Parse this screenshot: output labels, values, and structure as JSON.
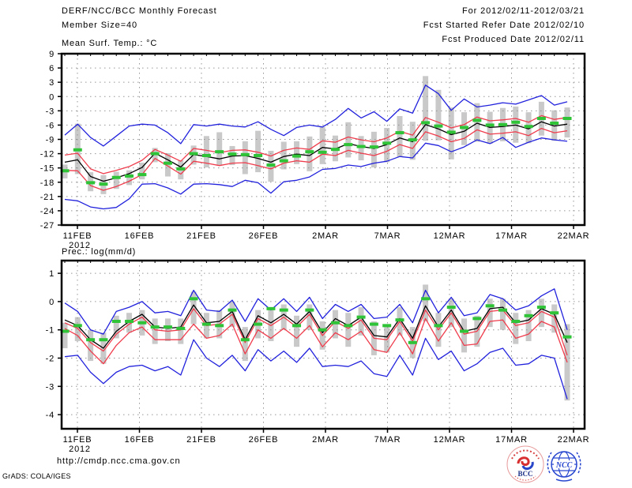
{
  "header": {
    "left": [
      "DERF/NCC/BCC Monthly Forecast",
      "Member Size=40"
    ],
    "right": [
      "For 2012/02/11-2012/03/21",
      "Fcst Started Refer Date 2012/02/10",
      "Fcst Produced Date 2012/02/11"
    ]
  },
  "footer": {
    "url": "http://cmdp.ncc.cma.gov.cn",
    "credit": "GrADS: COLA/IGES",
    "logo_bcc_label": "BCC",
    "logo_ncc_label": "NCC"
  },
  "colors": {
    "envelope_blue": "#2222dd",
    "std_red": "#ef3c4c",
    "mean_black": "#000000",
    "obs_green": "#2fc437",
    "spread_gray": "#c9c9c9",
    "grid_gray": "#969696",
    "axis_black": "#000000"
  },
  "chart_data": [
    {
      "type": "line",
      "title": "Mean Surf. Temp.: °C",
      "x_ticks": [
        {
          "label": "11FEB",
          "sub": "2012"
        },
        {
          "label": "16FEB"
        },
        {
          "label": "21FEB"
        },
        {
          "label": "26FEB"
        },
        {
          "label": "2MAR"
        },
        {
          "label": "7MAR"
        },
        {
          "label": "12MAR"
        },
        {
          "label": "17MAR"
        },
        {
          "label": "22MAR"
        }
      ],
      "y_ticks": [
        9,
        6,
        3,
        0,
        -3,
        -6,
        -9,
        -12,
        -15,
        -18,
        -21,
        -24,
        -27
      ],
      "ylim": [
        -27,
        9
      ],
      "grid": true,
      "series": [
        {
          "name": "ensemble-max",
          "color": "envelope_blue",
          "values": [
            -8.1,
            -5.8,
            -8.6,
            -10.4,
            -8.3,
            -6.2,
            -5.8,
            -6.0,
            -7.6,
            -9.9,
            -5.9,
            -6.2,
            -5.8,
            -6.2,
            -6.4,
            -5.3,
            -6.9,
            -8.2,
            -6.5,
            -6.0,
            -6.4,
            -4.8,
            -2.5,
            -4.5,
            -3.2,
            -5.2,
            -2.6,
            -3.5,
            2.4,
            0.6,
            -2.9,
            -0.5,
            -2.2,
            -1.8,
            -1.3,
            -1.6,
            -0.7,
            0.2,
            -1.8,
            -1.1
          ]
        },
        {
          "name": "mean-plus-spread",
          "color": "std_red",
          "values": [
            -12.3,
            -11.9,
            -15.2,
            -16.2,
            -15.5,
            -14.7,
            -13.4,
            -11.1,
            -12.3,
            -13.6,
            -10.9,
            -11.3,
            -11.8,
            -11.3,
            -11.2,
            -11.7,
            -12.5,
            -11.3,
            -10.8,
            -11.1,
            -9.3,
            -9.6,
            -8.5,
            -9.1,
            -9.5,
            -8.7,
            -7.3,
            -8.1,
            -4.4,
            -5.4,
            -6.6,
            -5.9,
            -4.3,
            -5.1,
            -4.9,
            -4.6,
            -5.4,
            -4.0,
            -4.8,
            -4.4
          ]
        },
        {
          "name": "ensemble-mean",
          "color": "mean_black",
          "values": [
            -13.8,
            -13.3,
            -16.8,
            -17.8,
            -17.1,
            -16.2,
            -14.9,
            -11.9,
            -13.3,
            -14.8,
            -12.2,
            -12.6,
            -13.1,
            -12.5,
            -12.4,
            -13.0,
            -13.8,
            -12.6,
            -12.1,
            -12.4,
            -10.7,
            -11.0,
            -9.9,
            -10.5,
            -10.9,
            -10.1,
            -8.7,
            -9.5,
            -5.9,
            -6.8,
            -8.0,
            -7.3,
            -5.6,
            -6.5,
            -6.3,
            -6.0,
            -6.8,
            -5.3,
            -6.2,
            -5.8
          ]
        },
        {
          "name": "mean-minus-spread",
          "color": "std_red",
          "values": [
            -15.5,
            -15.6,
            -18.7,
            -19.7,
            -18.9,
            -17.8,
            -16.4,
            -13.0,
            -14.6,
            -16.3,
            -13.6,
            -14.0,
            -14.5,
            -14.0,
            -13.9,
            -14.5,
            -15.2,
            -14.0,
            -13.5,
            -13.8,
            -12.1,
            -12.4,
            -11.3,
            -11.9,
            -12.4,
            -11.5,
            -10.1,
            -10.9,
            -7.4,
            -8.3,
            -9.5,
            -8.8,
            -7.0,
            -7.9,
            -7.7,
            -7.4,
            -8.2,
            -6.7,
            -7.6,
            -7.2
          ]
        },
        {
          "name": "ensemble-min",
          "color": "envelope_blue",
          "values": [
            -21.6,
            -21.9,
            -23.2,
            -23.6,
            -23.3,
            -21.5,
            -18.4,
            -18.3,
            -19.2,
            -20.5,
            -18.4,
            -18.3,
            -18.5,
            -18.9,
            -17.6,
            -18.1,
            -20.3,
            -17.9,
            -17.6,
            -16.9,
            -15.3,
            -15.1,
            -14.4,
            -14.7,
            -14.0,
            -13.6,
            -12.6,
            -12.9,
            -9.8,
            -10.3,
            -11.6,
            -10.6,
            -9.1,
            -9.9,
            -8.6,
            -10.7,
            -9.6,
            -8.7,
            -9.1,
            -9.4
          ]
        }
      ],
      "obs_dashes": {
        "name": "green-dash-marker",
        "color": "obs_green",
        "values": [
          -15.6,
          -11.2,
          -18.1,
          -18.4,
          -17.0,
          -16.7,
          -16.4,
          -12.0,
          -14.0,
          -15.2,
          -12.0,
          -12.4,
          -11.6,
          -12.1,
          -12.2,
          -12.4,
          -14.4,
          -13.5,
          -12.5,
          -11.6,
          -11.7,
          -11.1,
          -10.1,
          -10.5,
          -10.6,
          -9.8,
          -7.6,
          -9.1,
          -5.5,
          -6.2,
          -7.5,
          -6.5,
          -5.0,
          -6.0,
          -5.9,
          -5.4,
          -6.3,
          -4.6,
          -5.6,
          -4.6
        ]
      },
      "spread_bars": {
        "name": "gray-spread-bar",
        "color": "spread_gray",
        "hi": [
          -14.3,
          -5.7,
          -15.9,
          -16.5,
          -15.8,
          -15.5,
          -13.9,
          -10.8,
          -11.9,
          -13.4,
          -10.3,
          -8.3,
          -7.5,
          -10.4,
          -9.4,
          -7.2,
          -11.4,
          -9.5,
          -9.4,
          -8.4,
          -6.4,
          -8.2,
          -5.4,
          -8.3,
          -7.4,
          -6.6,
          -4.1,
          -5.3,
          4.3,
          1.4,
          -2.3,
          -3.3,
          -1.4,
          -3.2,
          -2.4,
          -2.1,
          -3.3,
          -1.1,
          -2.9,
          -2.3
        ],
        "lo": [
          -17.2,
          -16.3,
          -19.9,
          -20.5,
          -19.4,
          -18.6,
          -17.4,
          -13.8,
          -16.8,
          -17.4,
          -14.3,
          -14.9,
          -14.5,
          -14.4,
          -16.3,
          -15.9,
          -17.9,
          -15.3,
          -14.2,
          -15.7,
          -14.2,
          -13.6,
          -12.8,
          -13.4,
          -14.9,
          -13.8,
          -12.7,
          -13.3,
          -9.3,
          -9.2,
          -13.2,
          -10.2,
          -9.5,
          -9.9,
          -9.4,
          -9.7,
          -9.8,
          -8.2,
          -9.3,
          -8.6
        ]
      }
    },
    {
      "type": "line",
      "title": "Prec.: log(mm/d)",
      "x_ticks": [
        {
          "label": "11FEB",
          "sub": "2012"
        },
        {
          "label": "16FEB"
        },
        {
          "label": "21FEB"
        },
        {
          "label": "26FEB"
        },
        {
          "label": "2MAR"
        },
        {
          "label": "7MAR"
        },
        {
          "label": "12MAR"
        },
        {
          "label": "17MAR"
        },
        {
          "label": "22MAR"
        }
      ],
      "y_ticks": [
        1,
        0,
        -1,
        -2,
        -3,
        -4
      ],
      "ylim": [
        -4.5,
        1.45
      ],
      "grid": true,
      "series": [
        {
          "name": "ensemble-max",
          "color": "envelope_blue",
          "values": [
            -0.05,
            -0.35,
            -1.0,
            -1.15,
            -0.35,
            -0.2,
            0.0,
            -0.4,
            -0.35,
            -0.5,
            0.4,
            -0.3,
            -0.35,
            0.05,
            -0.7,
            0.1,
            -0.3,
            0.1,
            -0.35,
            0.15,
            -0.6,
            -0.1,
            -0.35,
            -0.1,
            -0.6,
            -0.55,
            -0.1,
            -0.75,
            0.4,
            -0.4,
            0.15,
            -0.5,
            -0.4,
            0.25,
            0.1,
            -0.3,
            -0.15,
            0.2,
            0.45,
            -1.0
          ]
        },
        {
          "name": "mean-plus-spread",
          "color": "std_red",
          "values": [
            -0.75,
            -0.95,
            -1.45,
            -1.75,
            -1.15,
            -0.8,
            -0.55,
            -1.0,
            -1.05,
            -1.0,
            -0.25,
            -0.85,
            -0.8,
            -0.45,
            -1.45,
            -0.6,
            -0.85,
            -0.55,
            -0.9,
            -0.45,
            -1.2,
            -0.7,
            -0.95,
            -0.65,
            -1.3,
            -1.35,
            -0.7,
            -1.4,
            -0.3,
            -1.0,
            -0.4,
            -1.15,
            -1.05,
            -0.35,
            -0.3,
            -0.85,
            -0.75,
            -0.35,
            -0.55,
            -1.9
          ]
        },
        {
          "name": "ensemble-mean",
          "color": "mean_black",
          "values": [
            -0.65,
            -0.85,
            -1.35,
            -1.65,
            -1.05,
            -0.7,
            -0.45,
            -0.9,
            -0.95,
            -0.9,
            -0.12,
            -0.75,
            -0.7,
            -0.35,
            -1.35,
            -0.5,
            -0.75,
            -0.45,
            -0.8,
            -0.35,
            -1.1,
            -0.6,
            -0.85,
            -0.55,
            -1.2,
            -1.25,
            -0.6,
            -1.3,
            -0.15,
            -0.9,
            -0.3,
            -1.05,
            -0.95,
            -0.25,
            -0.2,
            -0.75,
            -0.65,
            -0.25,
            -0.45,
            -1.45
          ]
        },
        {
          "name": "mean-minus-spread",
          "color": "std_red",
          "values": [
            -0.95,
            -1.2,
            -1.75,
            -2.2,
            -1.55,
            -1.1,
            -0.9,
            -1.35,
            -1.35,
            -1.35,
            -0.8,
            -1.3,
            -1.2,
            -0.8,
            -1.85,
            -1.0,
            -1.3,
            -0.95,
            -1.3,
            -0.85,
            -1.6,
            -1.1,
            -1.35,
            -1.05,
            -1.7,
            -1.8,
            -1.1,
            -1.85,
            -0.6,
            -1.4,
            -0.75,
            -1.55,
            -1.5,
            -0.7,
            -0.65,
            -1.3,
            -1.15,
            -0.7,
            -0.9,
            -2.15
          ]
        },
        {
          "name": "ensemble-min",
          "color": "envelope_blue",
          "values": [
            -1.95,
            -1.9,
            -2.5,
            -2.9,
            -2.5,
            -2.3,
            -2.25,
            -2.45,
            -2.3,
            -2.6,
            -1.35,
            -2.0,
            -2.3,
            -1.9,
            -2.45,
            -1.7,
            -2.1,
            -1.75,
            -2.15,
            -1.65,
            -2.3,
            -2.25,
            -2.3,
            -2.1,
            -2.55,
            -2.65,
            -1.9,
            -2.6,
            -1.3,
            -2.05,
            -1.75,
            -2.45,
            -2.2,
            -1.8,
            -1.65,
            -2.25,
            -2.2,
            -1.9,
            -2.0,
            -3.45
          ]
        }
      ],
      "obs_dashes": {
        "name": "green-dash-marker",
        "color": "obs_green",
        "values": [
          -1.05,
          -0.85,
          -1.35,
          -1.35,
          -0.7,
          -0.7,
          -0.75,
          -0.9,
          -0.9,
          -0.95,
          0.1,
          -0.8,
          -0.85,
          -0.3,
          -1.35,
          -0.8,
          -0.25,
          -0.3,
          -0.85,
          -0.3,
          -1.0,
          -0.75,
          -0.85,
          -0.55,
          -0.8,
          -0.85,
          -0.65,
          -1.45,
          0.1,
          -0.85,
          -0.2,
          -1.05,
          -0.6,
          -0.15,
          -0.3,
          -0.7,
          -0.5,
          -0.2,
          -0.4,
          -1.25
        ]
      },
      "spread_bars": {
        "name": "gray-spread-bar",
        "color": "spread_gray",
        "hi": [
          -0.75,
          -0.55,
          -1.0,
          -1.1,
          -0.5,
          -0.4,
          -0.3,
          -0.6,
          -0.6,
          -0.6,
          0.35,
          -0.4,
          -0.3,
          0.0,
          -0.9,
          -0.3,
          -0.2,
          -0.1,
          -0.5,
          -0.1,
          -0.7,
          -0.3,
          -0.4,
          -0.2,
          -0.7,
          -0.8,
          -0.2,
          -0.9,
          0.6,
          -0.4,
          0.1,
          -0.6,
          -0.5,
          0.1,
          0.1,
          -0.4,
          -0.3,
          0.1,
          -0.1,
          -0.8
        ],
        "lo": [
          -1.65,
          -1.4,
          -2.1,
          -2.2,
          -1.3,
          -1.1,
          -1.2,
          -1.5,
          -1.4,
          -1.5,
          -0.8,
          -1.3,
          -1.3,
          -0.9,
          -2.1,
          -1.3,
          -1.4,
          -1.0,
          -1.6,
          -1.0,
          -1.7,
          -1.3,
          -1.6,
          -1.2,
          -1.9,
          -1.8,
          -1.2,
          -2.0,
          -0.7,
          -1.6,
          -0.9,
          -1.8,
          -1.6,
          -0.9,
          -1.0,
          -1.5,
          -1.4,
          -0.9,
          -1.1,
          -3.5
        ]
      }
    }
  ]
}
